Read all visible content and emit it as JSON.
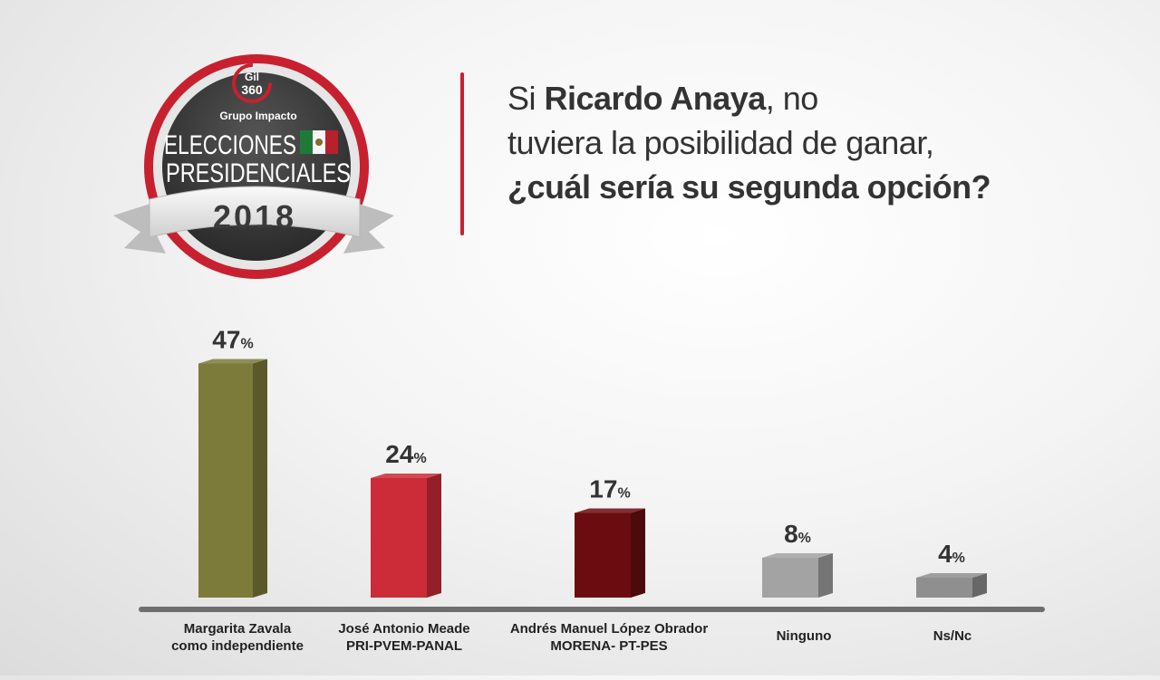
{
  "logo": {
    "brand_top": "Gil",
    "brand_bottom": "360",
    "group": "Grupo Impacto",
    "line1": "ELECCIONES",
    "line2": "PRESIDENCIALES",
    "year": "2018"
  },
  "headline": {
    "l1_pre": "Si ",
    "l1_bold": "Ricardo Anaya",
    "l1_post": ", no",
    "l2": "tuviera la posibilidad de ganar,",
    "l3": "¿cuál sería su segunda opción?"
  },
  "chart_data": {
    "type": "bar",
    "title": "",
    "xlabel": "",
    "ylabel": "",
    "ylim": [
      0,
      50
    ],
    "grid": false,
    "value_suffix": "%",
    "categories": [
      [
        "Margarita Zavala",
        "como independiente"
      ],
      [
        "José Antonio Meade",
        "PRI-PVEM-PANAL"
      ],
      [
        "Andrés Manuel López Obrador",
        "MORENA- PT-PES"
      ],
      [
        "Ninguno"
      ],
      [
        "Ns/Nc"
      ]
    ],
    "values": [
      47,
      24,
      17,
      8,
      4
    ],
    "colors": [
      "#7d7b3a",
      "#cc2b38",
      "#6b0d10",
      "#a3a3a3",
      "#8f8f8f"
    ]
  }
}
